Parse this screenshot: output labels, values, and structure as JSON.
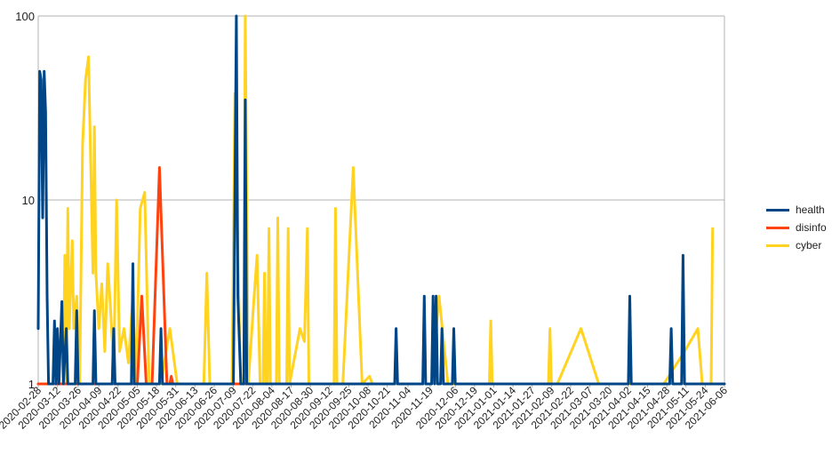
{
  "chart_data": {
    "type": "line",
    "title": "",
    "xlabel": "",
    "ylabel": "",
    "yscale": "log",
    "ylim": [
      1,
      100
    ],
    "y_ticks": [
      "1",
      "10",
      "100"
    ],
    "x_range": [
      "2020-02-28",
      "2021-06-06"
    ],
    "x_ticks": [
      "2020-02-28",
      "2020-03-12",
      "2020-03-26",
      "2020-04-09",
      "2020-04-22",
      "2020-05-05",
      "2020-05-18",
      "2020-05-31",
      "2020-06-13",
      "2020-06-26",
      "2020-07-09",
      "2020-07-22",
      "2020-08-04",
      "2020-08-17",
      "2020-08-30",
      "2020-09-12",
      "2020-09-25",
      "2020-10-08",
      "2020-10-21",
      "2020-11-04",
      "2020-11-19",
      "2020-12-06",
      "2020-12-19",
      "2021-01-01",
      "2021-01-14",
      "2021-01-27",
      "2021-02-09",
      "2021-02-22",
      "2021-03-07",
      "2021-03-20",
      "2021-04-02",
      "2021-04-15",
      "2021-04-28",
      "2021-05-11",
      "2021-05-24",
      "2021-06-06"
    ],
    "grid": true,
    "legend_position": "right",
    "series": [
      {
        "name": "health",
        "color": "#004586",
        "points": [
          [
            "2020-02-28",
            2
          ],
          [
            "2020-02-29",
            50
          ],
          [
            "2020-03-01",
            45
          ],
          [
            "2020-03-02",
            8
          ],
          [
            "2020-03-03",
            50
          ],
          [
            "2020-03-04",
            30
          ],
          [
            "2020-03-05",
            3
          ],
          [
            "2020-03-06",
            1
          ],
          [
            "2020-03-09",
            1
          ],
          [
            "2020-03-10",
            2.2
          ],
          [
            "2020-03-11",
            1
          ],
          [
            "2020-03-12",
            2
          ],
          [
            "2020-03-13",
            1
          ],
          [
            "2020-03-15",
            2.8
          ],
          [
            "2020-03-16",
            1
          ],
          [
            "2020-03-18",
            2
          ],
          [
            "2020-03-19",
            1
          ],
          [
            "2020-03-24",
            1
          ],
          [
            "2020-03-25",
            2.5
          ],
          [
            "2020-03-26",
            1
          ],
          [
            "2020-04-05",
            1
          ],
          [
            "2020-04-06",
            2.5
          ],
          [
            "2020-04-07",
            1
          ],
          [
            "2020-04-18",
            1
          ],
          [
            "2020-04-19",
            2
          ],
          [
            "2020-04-20",
            1
          ],
          [
            "2020-05-01",
            1
          ],
          [
            "2020-05-02",
            4.5
          ],
          [
            "2020-05-03",
            1
          ],
          [
            "2020-05-20",
            1
          ],
          [
            "2020-05-21",
            2
          ],
          [
            "2020-05-22",
            1
          ],
          [
            "2020-07-09",
            1
          ],
          [
            "2020-07-11",
            100
          ],
          [
            "2020-07-12",
            3
          ],
          [
            "2020-07-14",
            1
          ],
          [
            "2020-07-16",
            1
          ],
          [
            "2020-07-17",
            35
          ],
          [
            "2020-07-18",
            1
          ],
          [
            "2020-10-26",
            1
          ],
          [
            "2020-10-27",
            2
          ],
          [
            "2020-10-28",
            1
          ],
          [
            "2020-11-14",
            1
          ],
          [
            "2020-11-15",
            3
          ],
          [
            "2020-11-16",
            1
          ],
          [
            "2020-11-20",
            1
          ],
          [
            "2020-11-21",
            3
          ],
          [
            "2020-11-22",
            1
          ],
          [
            "2020-11-23",
            3
          ],
          [
            "2020-11-24",
            1
          ],
          [
            "2020-11-26",
            1
          ],
          [
            "2020-11-27",
            2
          ],
          [
            "2020-11-28",
            1
          ],
          [
            "2020-12-04",
            1
          ],
          [
            "2020-12-05",
            2
          ],
          [
            "2020-12-06",
            1
          ],
          [
            "2021-04-02",
            1
          ],
          [
            "2021-04-03",
            3
          ],
          [
            "2021-04-04",
            1
          ],
          [
            "2021-04-30",
            1
          ],
          [
            "2021-05-01",
            2
          ],
          [
            "2021-05-02",
            1
          ],
          [
            "2021-05-08",
            1
          ],
          [
            "2021-05-09",
            5
          ],
          [
            "2021-05-10",
            1
          ],
          [
            "2021-06-06",
            1
          ]
        ]
      },
      {
        "name": "disinfo",
        "color": "#ff420e",
        "points": [
          [
            "2020-02-28",
            1
          ],
          [
            "2020-04-22",
            1
          ],
          [
            "2020-05-05",
            1
          ],
          [
            "2020-05-08",
            3
          ],
          [
            "2020-05-11",
            1
          ],
          [
            "2020-05-15",
            1
          ],
          [
            "2020-05-20",
            15
          ],
          [
            "2020-05-25",
            1
          ],
          [
            "2020-05-27",
            1
          ],
          [
            "2020-05-28",
            1.1
          ],
          [
            "2020-05-29",
            1
          ],
          [
            "2020-08-22",
            1
          ]
        ]
      },
      {
        "name": "cyber",
        "color": "#ffd320",
        "points": [
          [
            "2020-02-28",
            1
          ],
          [
            "2020-03-16",
            1
          ],
          [
            "2020-03-17",
            5
          ],
          [
            "2020-03-18",
            1
          ],
          [
            "2020-03-19",
            9
          ],
          [
            "2020-03-20",
            2
          ],
          [
            "2020-03-22",
            6
          ],
          [
            "2020-03-23",
            2
          ],
          [
            "2020-03-25",
            3
          ],
          [
            "2020-03-27",
            1
          ],
          [
            "2020-03-29",
            20
          ],
          [
            "2020-03-30",
            30
          ],
          [
            "2020-03-31",
            45
          ],
          [
            "2020-04-02",
            60
          ],
          [
            "2020-04-03",
            25
          ],
          [
            "2020-04-05",
            4
          ],
          [
            "2020-04-06",
            25
          ],
          [
            "2020-04-07",
            4
          ],
          [
            "2020-04-09",
            2
          ],
          [
            "2020-04-11",
            3.5
          ],
          [
            "2020-04-13",
            1.5
          ],
          [
            "2020-04-15",
            4.5
          ],
          [
            "2020-04-17",
            2.5
          ],
          [
            "2020-04-19",
            1.2
          ],
          [
            "2020-04-21",
            10
          ],
          [
            "2020-04-23",
            1.5
          ],
          [
            "2020-04-26",
            2
          ],
          [
            "2020-04-29",
            1.3
          ],
          [
            "2020-05-02",
            3
          ],
          [
            "2020-05-04",
            1
          ],
          [
            "2020-05-07",
            9
          ],
          [
            "2020-05-10",
            11
          ],
          [
            "2020-05-13",
            1
          ],
          [
            "2020-05-21",
            1
          ],
          [
            "2020-05-27",
            2
          ],
          [
            "2020-06-01",
            1
          ],
          [
            "2020-06-19",
            1
          ],
          [
            "2020-06-21",
            4
          ],
          [
            "2020-06-23",
            1
          ],
          [
            "2020-07-08",
            1
          ],
          [
            "2020-07-10",
            38
          ],
          [
            "2020-07-12",
            5
          ],
          [
            "2020-07-14",
            1
          ],
          [
            "2020-07-16",
            1
          ],
          [
            "2020-07-17",
            100
          ],
          [
            "2020-07-19",
            1
          ],
          [
            "2020-07-23",
            3
          ],
          [
            "2020-07-25",
            5
          ],
          [
            "2020-07-27",
            1
          ],
          [
            "2020-07-29",
            1
          ],
          [
            "2020-07-30",
            4
          ],
          [
            "2020-07-31",
            1
          ],
          [
            "2020-08-01",
            1
          ],
          [
            "2020-08-02",
            7
          ],
          [
            "2020-08-03",
            1
          ],
          [
            "2020-08-07",
            1
          ],
          [
            "2020-08-08",
            8
          ],
          [
            "2020-08-09",
            1
          ],
          [
            "2020-08-14",
            1
          ],
          [
            "2020-08-15",
            7
          ],
          [
            "2020-08-16",
            1
          ],
          [
            "2020-08-23",
            2
          ],
          [
            "2020-08-26",
            1.7
          ],
          [
            "2020-08-28",
            7
          ],
          [
            "2020-08-29",
            1
          ],
          [
            "2020-09-03",
            1
          ],
          [
            "2020-09-04",
            1
          ],
          [
            "2020-09-15",
            1
          ],
          [
            "2020-09-16",
            9
          ],
          [
            "2020-09-17",
            1
          ],
          [
            "2020-09-21",
            1
          ],
          [
            "2020-09-28",
            15
          ],
          [
            "2020-10-04",
            1
          ],
          [
            "2020-10-09",
            1.1
          ],
          [
            "2020-10-11",
            1
          ],
          [
            "2020-11-20",
            1
          ],
          [
            "2020-11-25",
            3
          ],
          [
            "2020-12-01",
            1
          ],
          [
            "2020-12-29",
            1
          ],
          [
            "2020-12-30",
            2.2
          ],
          [
            "2020-12-31",
            1
          ],
          [
            "2021-02-07",
            1
          ],
          [
            "2021-02-08",
            2
          ],
          [
            "2021-02-09",
            1
          ],
          [
            "2021-02-13",
            1
          ],
          [
            "2021-03-01",
            2
          ],
          [
            "2021-03-13",
            1
          ],
          [
            "2021-04-26",
            1
          ],
          [
            "2021-05-10",
            1.5
          ],
          [
            "2021-05-19",
            2
          ],
          [
            "2021-05-22",
            1
          ],
          [
            "2021-05-28",
            1
          ],
          [
            "2021-05-29",
            7
          ]
        ]
      }
    ]
  }
}
